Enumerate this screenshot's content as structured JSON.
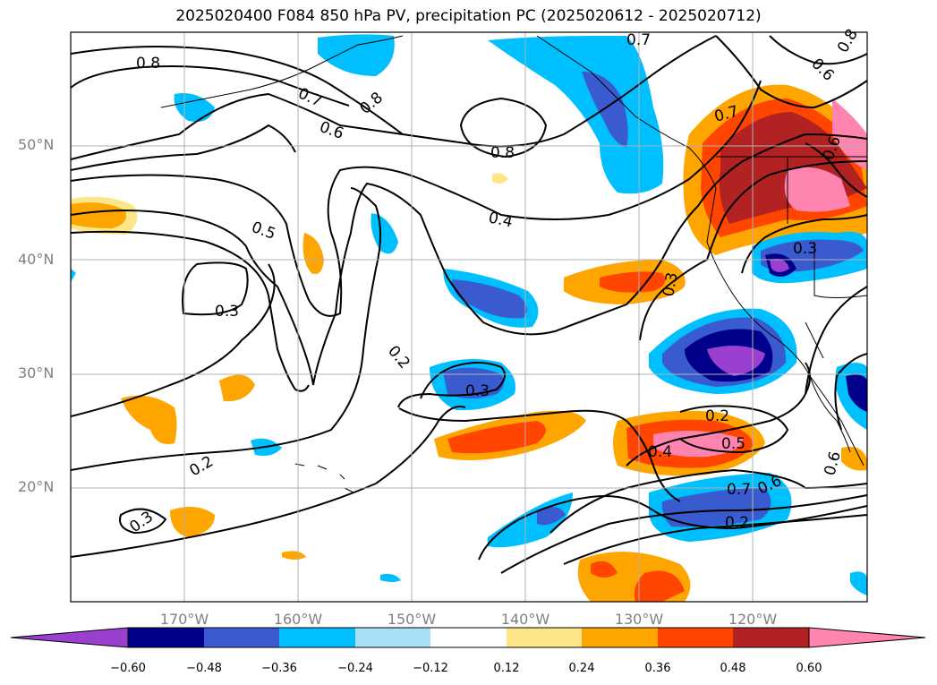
{
  "title": "2025020400 F084 850 hPa PV, precipitation PC (2025020612 - 2025020712)",
  "lat_labels": [
    "50°N",
    "40°N",
    "30°N",
    "20°N"
  ],
  "lon_labels": [
    "170°W",
    "160°W",
    "150°W",
    "140°W",
    "130°W",
    "120°W"
  ],
  "colorbar": {
    "ticks": [
      "−0.60",
      "−0.48",
      "−0.36",
      "−0.24",
      "−0.12",
      "0.12",
      "0.24",
      "0.36",
      "0.48",
      "0.60"
    ],
    "colors": [
      "#9b3fd1",
      "#00008b",
      "#3a5bd0",
      "#00bfff",
      "#a8e0f8",
      "#ffffff",
      "#fde68a",
      "#ffa500",
      "#ff4500",
      "#b22222",
      "#ff85b0"
    ]
  },
  "contour_labels": [
    "0.8",
    "0.7",
    "0.6",
    "0.8",
    "0.8",
    "0.5",
    "0.4",
    "0.3",
    "0.2",
    "0.3",
    "0.2",
    "0.3",
    "0.3",
    "0.2",
    "0.4",
    "0.5",
    "0.7",
    "0.6",
    "0.2",
    "0.6",
    "0.3",
    "0.7",
    "0.6",
    "0.7",
    "0.8",
    "0.6"
  ]
}
